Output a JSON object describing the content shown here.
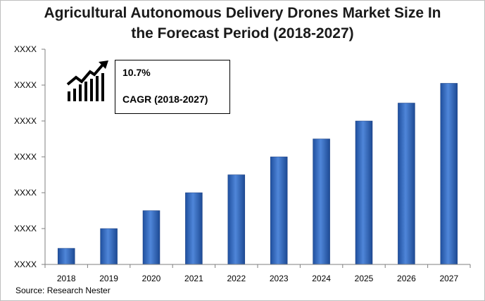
{
  "chart_data": {
    "type": "bar",
    "title_line1": "Agricultural Autonomous Delivery Drones Market Size In",
    "title_line2": "the Forecast Period (2018-2027)",
    "categories": [
      "2018",
      "2019",
      "2020",
      "2021",
      "2022",
      "2023",
      "2024",
      "2025",
      "2026",
      "2027"
    ],
    "values": [
      0.45,
      1.0,
      1.5,
      2.0,
      2.5,
      3.0,
      3.5,
      4.0,
      4.5,
      5.05
    ],
    "ylim": [
      0,
      6
    ],
    "y_tick_labels": [
      "XXXX",
      "XXXX",
      "XXXX",
      "XXXX",
      "XXXX",
      "XXXX",
      "XXXX"
    ],
    "xlabel": "",
    "ylabel": "",
    "grid": false,
    "bar_color": "#3a6fc4"
  },
  "callout": {
    "rate": "10.7%",
    "label": "CAGR (2018-2027)",
    "icon": "growth-chart-icon"
  },
  "source": "Source: Research Nester"
}
